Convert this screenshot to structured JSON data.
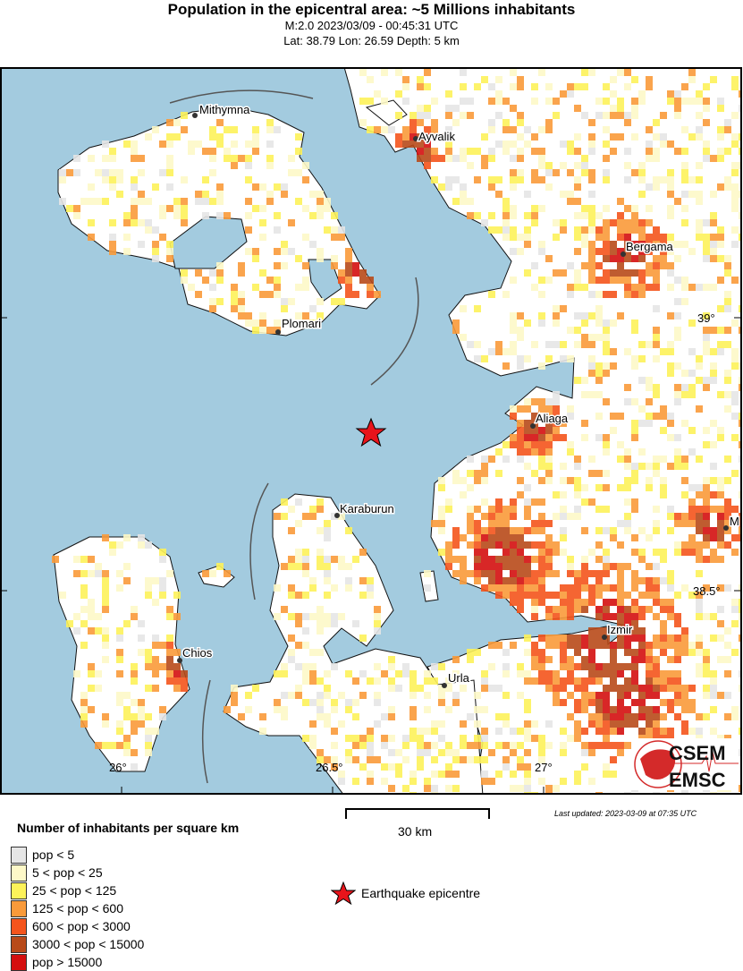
{
  "header": {
    "title": "Population in the epicentral area: ~5 Millions inhabitants",
    "line2": "M:2.0 2023/03/09 - 00:45:31 UTC",
    "line3": "Lat: 38.79 Lon: 26.59 Depth: 5 km"
  },
  "map": {
    "sea_color": "#a3cbdf",
    "cities": [
      {
        "name": "Mithymna"
      },
      {
        "name": "Ayvalik"
      },
      {
        "name": "Bergama"
      },
      {
        "name": "Plomari"
      },
      {
        "name": "Aliaga"
      },
      {
        "name": "Karaburun"
      },
      {
        "name": "M"
      },
      {
        "name": "Izmir"
      },
      {
        "name": "Chios"
      },
      {
        "name": "Urla"
      }
    ],
    "lat_labels": [
      "39°",
      "38.5°"
    ],
    "lon_labels": [
      "26°",
      "26.5°",
      "27°"
    ],
    "logo": {
      "top": "CSEM",
      "bottom": "EMSC"
    }
  },
  "legend": {
    "title": "Number of inhabitants per square km",
    "items": [
      {
        "label": "pop < 5",
        "color": "#e6e6e6"
      },
      {
        "label": "5 < pop < 25",
        "color": "#fdf8c8"
      },
      {
        "label": "25 < pop < 125",
        "color": "#fdf25a"
      },
      {
        "label": "125 < pop < 600",
        "color": "#f99a3a"
      },
      {
        "label": "600 < pop < 3000",
        "color": "#f4541c"
      },
      {
        "label": "3000 < pop < 15000",
        "color": "#b84a1a"
      },
      {
        "label": "pop > 15000",
        "color": "#d40f0f"
      }
    ],
    "epicentre_label": "Earthquake epicentre"
  },
  "scale": {
    "label": "30 km"
  },
  "last_updated": "Last updated: 2023-03-09 at 07:35 UTC"
}
